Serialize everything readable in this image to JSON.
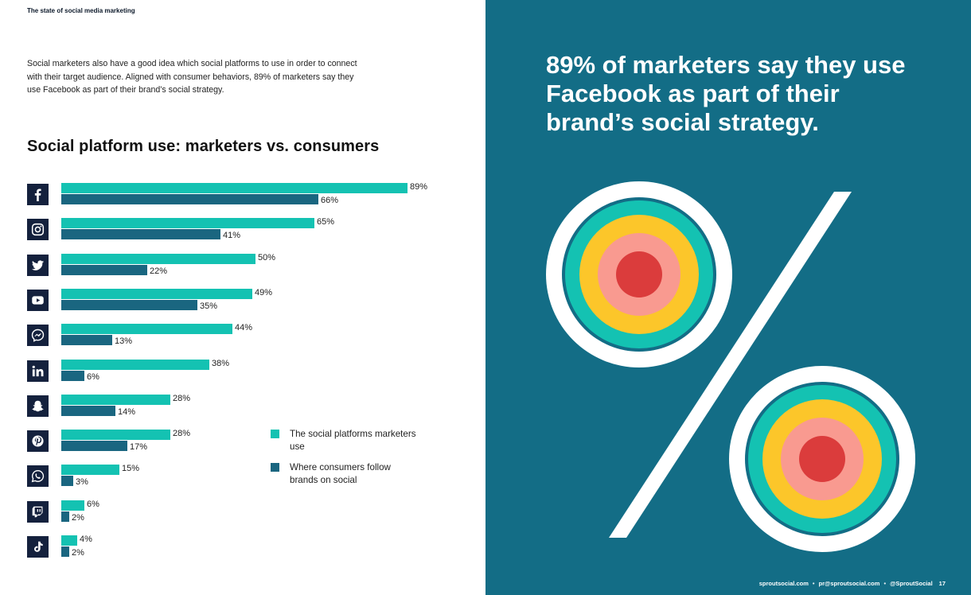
{
  "header": {
    "title": "The state of social media marketing"
  },
  "intro": {
    "text": "Social marketers also have a good idea which social platforms to use in order to connect with their target audience. Aligned with consumer behaviors, 89% of marketers say they use Facebook as part of their brand’s social strategy."
  },
  "chart_data": {
    "type": "bar",
    "orientation": "horizontal",
    "title": "Social platform use: marketers vs. consumers",
    "categories": [
      "Facebook",
      "Instagram",
      "Twitter",
      "YouTube",
      "Messenger",
      "LinkedIn",
      "Snapchat",
      "Pinterest",
      "WhatsApp",
      "Twitch",
      "TikTok"
    ],
    "category_icons": [
      "facebook-icon",
      "instagram-icon",
      "twitter-icon",
      "youtube-icon",
      "messenger-icon",
      "linkedin-icon",
      "snapchat-icon",
      "pinterest-icon",
      "whatsapp-icon",
      "twitch-icon",
      "tiktok-icon"
    ],
    "series": [
      {
        "name": "The social platforms marketers use",
        "color": "#14c2b2",
        "values": [
          89,
          65,
          50,
          49,
          44,
          38,
          28,
          28,
          15,
          6,
          4
        ]
      },
      {
        "name": "Where consumers follow brands on social",
        "color": "#1a6680",
        "values": [
          66,
          41,
          22,
          35,
          13,
          6,
          14,
          17,
          3,
          2,
          2
        ]
      }
    ],
    "value_suffix": "%",
    "xlim": [
      0,
      100
    ],
    "grid": false,
    "legend_position": "bottom-right"
  },
  "right": {
    "headline": "89% of marketers say they use Facebook as part of their brand’s social strategy.",
    "background_color": "#136d86",
    "ring_colors": [
      "#ffffff",
      "#136d86",
      "#14c2b2",
      "#fcc62a",
      "#f99a90",
      "#db3c3c"
    ],
    "footer": {
      "website": "sproutsocial.com",
      "email": "pr@sproutsocial.com",
      "handle": "@SproutSocial",
      "page_number": "17"
    }
  }
}
